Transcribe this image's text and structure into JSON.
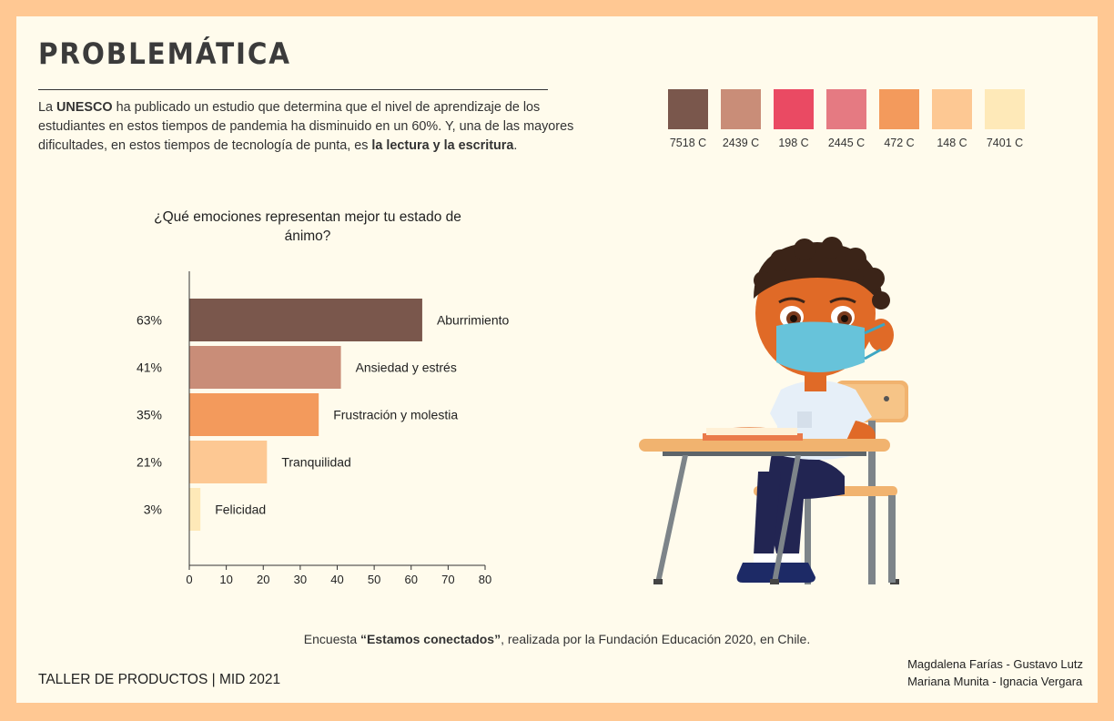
{
  "header": {
    "title": "PROBLEMÁTICA",
    "intro_p1": "La ",
    "intro_b1": "UNESCO",
    "intro_p2": " ha publicado un estudio que determina que el nivel de aprendizaje de los estudiantes en estos tiempos de pandemia ha disminuido en un 60%. Y, una de las mayores dificultades, en estos tiempos de tecnología de punta, es ",
    "intro_b2": "la lectura y la escritura",
    "intro_p3": "."
  },
  "palette": [
    {
      "code": "7518 C",
      "color": "#7A574C"
    },
    {
      "code": "2439 C",
      "color": "#C98D78"
    },
    {
      "code": "198 C",
      "color": "#EA4A63"
    },
    {
      "code": "2445 C",
      "color": "#E57A82"
    },
    {
      "code": "472 C",
      "color": "#F39A5C"
    },
    {
      "code": "148 C",
      "color": "#FDC893"
    },
    {
      "code": "7401 C",
      "color": "#FEE9B8"
    }
  ],
  "chart_data": {
    "type": "bar",
    "orientation": "horizontal",
    "title": "¿Qué emociones representan mejor tu estado de ánimo?",
    "categories": [
      "Aburrimiento",
      "Ansiedad y estrés",
      "Frustración y molestia",
      "Tranquilidad",
      "Felicidad"
    ],
    "values": [
      63,
      41,
      35,
      21,
      3
    ],
    "value_labels": [
      "63%",
      "41%",
      "35%",
      "21%",
      "3%"
    ],
    "colors": [
      "#7A574C",
      "#C98D78",
      "#F39A5C",
      "#FDC893",
      "#FEE9B8"
    ],
    "xlim": [
      0,
      80
    ],
    "xticks": [
      0,
      10,
      20,
      30,
      40,
      50,
      60,
      70,
      80
    ],
    "grid": false
  },
  "source": {
    "pre": "Encuesta ",
    "bold": "“Estamos conectados”",
    "post": ", realizada por la Fundación Educación 2020, en Chile."
  },
  "footer": {
    "course": "TALLER DE PRODUCTOS | MID 2021",
    "credits_line1": "Magdalena Farías - Gustavo Lutz",
    "credits_line2": "Mariana Munita - Ignacia Vergara"
  }
}
